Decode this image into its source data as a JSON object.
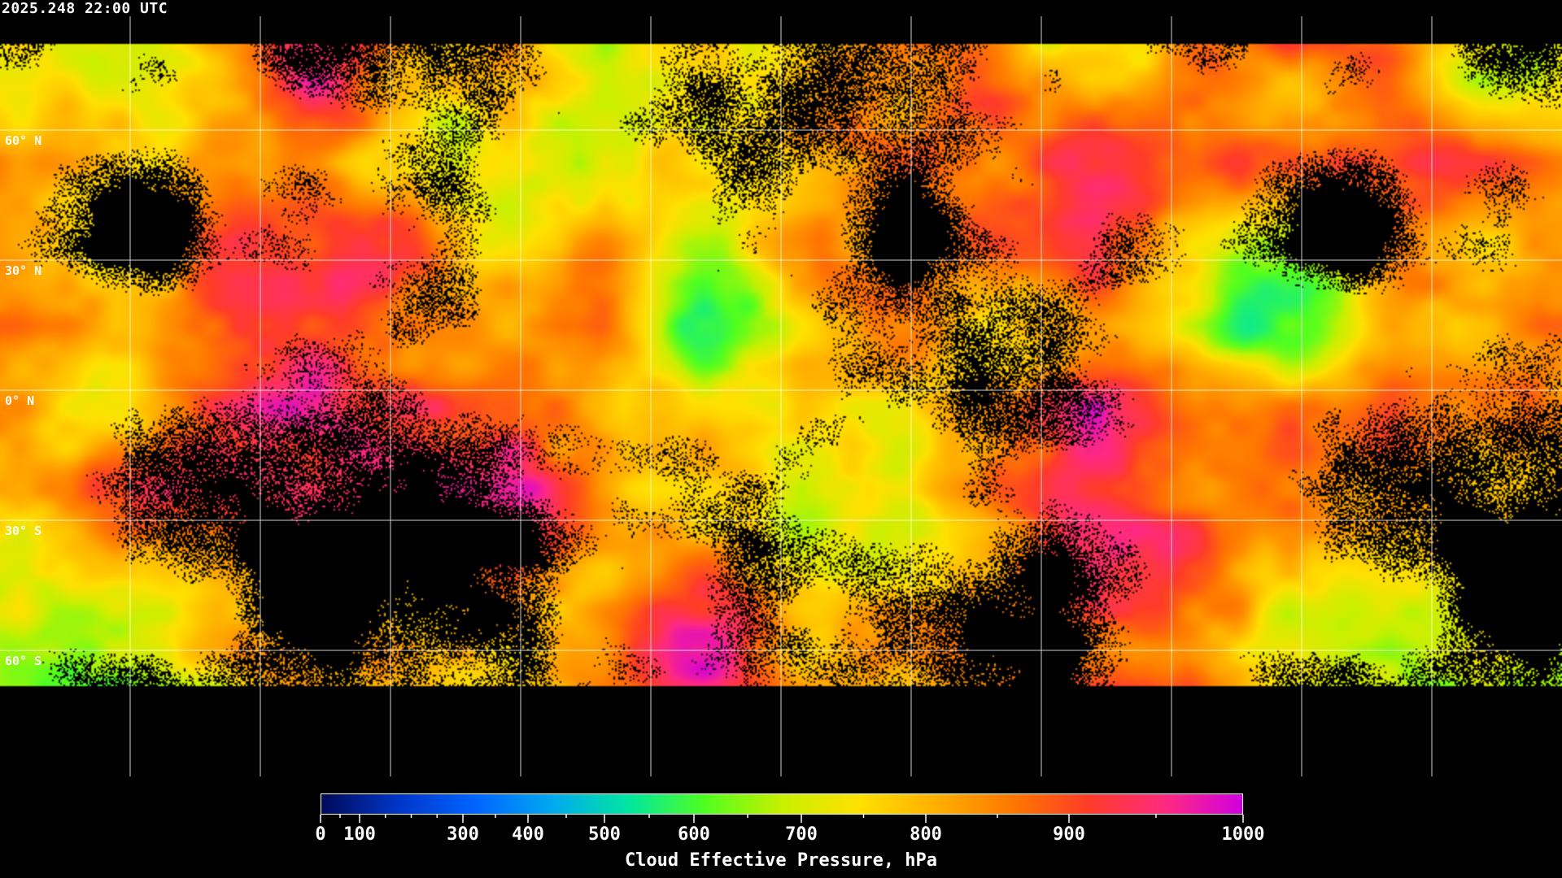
{
  "timestamp": "2025.248 22:00 UTC",
  "latitude_labels": [
    {
      "label": "60° N",
      "lat": 60
    },
    {
      "label": "30° N",
      "lat": 30
    },
    {
      "label": "0° N",
      "lat": 0
    },
    {
      "label": "30° S",
      "lat": -30
    },
    {
      "label": "60° S",
      "lat": -60
    }
  ],
  "colorbar": {
    "title": "Cloud Effective Pressure, hPa",
    "range": [
      0,
      1000
    ],
    "tick_labels": [
      {
        "label": "0",
        "value": 0
      },
      {
        "label": "100",
        "value": 100
      },
      {
        "label": "300",
        "value": 300
      },
      {
        "label": "400",
        "value": 400
      },
      {
        "label": "500",
        "value": 500
      },
      {
        "label": "600",
        "value": 600
      },
      {
        "label": "700",
        "value": 700
      },
      {
        "label": "800",
        "value": 800
      },
      {
        "label": "900",
        "value": 900
      },
      {
        "label": "1000",
        "value": 1000
      }
    ],
    "color_stops": [
      "#000a5a",
      "#0036c8",
      "#0064ff",
      "#00a8f0",
      "#00e6a0",
      "#50ff20",
      "#c8f000",
      "#ffe000",
      "#ffb000",
      "#ff7800",
      "#ff3c28",
      "#ff2a80",
      "#d000e0"
    ]
  },
  "colors": {
    "background": "#000000",
    "gridlines": "#ffffff",
    "coastlines": "#ffffff"
  }
}
